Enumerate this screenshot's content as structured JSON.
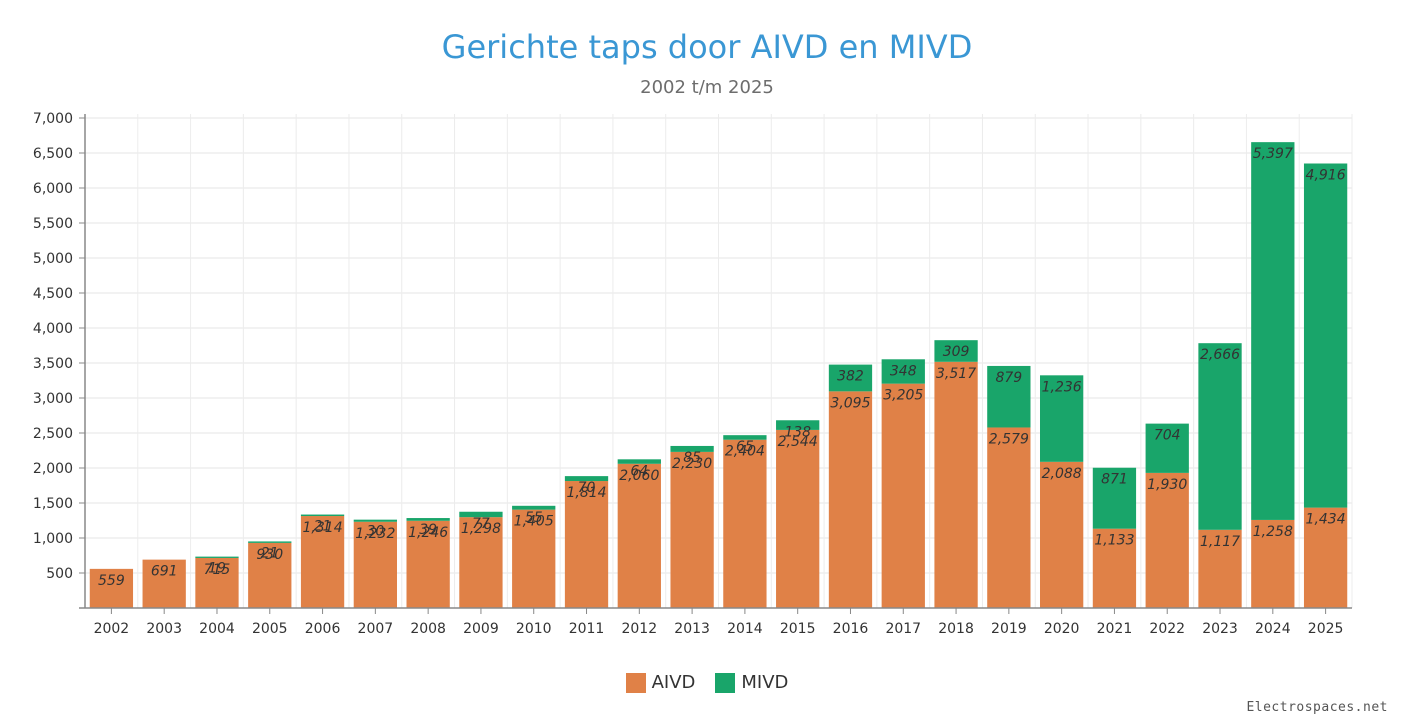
{
  "chart_data": {
    "type": "bar",
    "stacked": true,
    "title": "Gerichte taps door AIVD en MIVD",
    "subtitle": "2002 t/m 2025",
    "categories": [
      "2002",
      "2003",
      "2004",
      "2005",
      "2006",
      "2007",
      "2008",
      "2009",
      "2010",
      "2011",
      "2012",
      "2013",
      "2014",
      "2015",
      "2016",
      "2017",
      "2018",
      "2019",
      "2020",
      "2021",
      "2022",
      "2023",
      "2024",
      "2025"
    ],
    "series": [
      {
        "name": "AIVD",
        "color": "#e08147",
        "values": [
          559,
          691,
          715,
          930,
          1314,
          1232,
          1246,
          1298,
          1405,
          1814,
          2060,
          2230,
          2404,
          2544,
          3095,
          3205,
          3517,
          2579,
          2088,
          1133,
          1930,
          1117,
          1258,
          1434
        ]
      },
      {
        "name": "MIVD",
        "color": "#19a56a",
        "values": [
          null,
          null,
          19,
          21,
          21,
          30,
          39,
          77,
          55,
          70,
          64,
          85,
          65,
          138,
          382,
          348,
          309,
          879,
          1236,
          871,
          704,
          2666,
          5397,
          4916
        ]
      }
    ],
    "y_ticks": [
      "500",
      "1,000",
      "1,500",
      "2,000",
      "2,500",
      "3,000",
      "3,500",
      "4,000",
      "4,500",
      "5,000",
      "5,500",
      "6,000",
      "6,500",
      "7,000"
    ],
    "ylim": [
      0,
      7000
    ],
    "grid": true,
    "legend_position": "bottom-center",
    "source": "Electrospaces.net"
  }
}
